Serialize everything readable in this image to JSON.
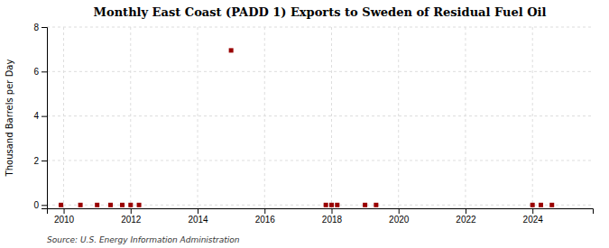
{
  "chart_data": {
    "type": "scatter",
    "title": "Monthly East Coast (PADD 1) Exports to Sweden of Residual Fuel Oil",
    "ylabel": "Thousand Barrels per Day",
    "source": "Source: U.S. Energy Information Administration",
    "x": [
      2009.92,
      2010.5,
      2011.0,
      2011.4,
      2011.75,
      2012.0,
      2012.25,
      2015.0,
      2017.83,
      2018.0,
      2018.17,
      2019.0,
      2019.33,
      2024.0,
      2024.25,
      2024.58
    ],
    "values": [
      0.0,
      0.0,
      0.0,
      0.0,
      0.0,
      0.0,
      0.0,
      6.95,
      0.0,
      0.0,
      0.0,
      0.0,
      0.0,
      0.0,
      0.0,
      0.0
    ],
    "color": "#990000",
    "marker": "square",
    "xlim": [
      2009.5,
      2025.8
    ],
    "ylim": [
      -0.15,
      8
    ],
    "xticks": [
      2010,
      2012,
      2014,
      2016,
      2018,
      2020,
      2022,
      2024
    ],
    "yticks": [
      0,
      2,
      4,
      6,
      8
    ],
    "grid": true
  }
}
